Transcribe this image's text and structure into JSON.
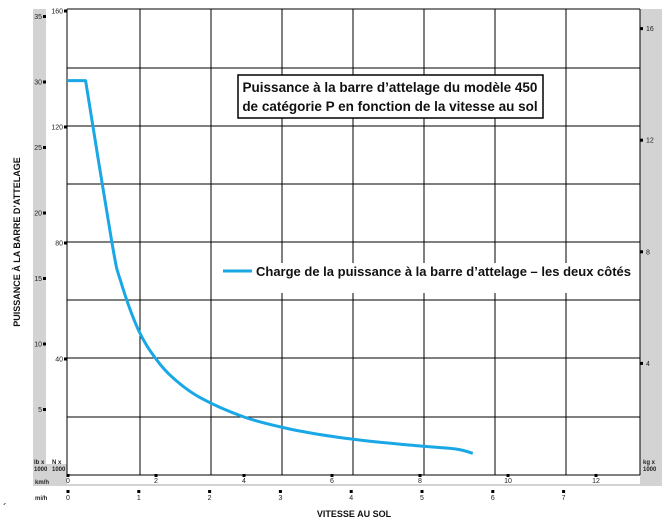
{
  "chart_data": {
    "type": "line",
    "title_lines": [
      "Puissance à la barre d’attelage du modèle 450",
      "de catégorie P en fonction de la vitesse au sol"
    ],
    "ylabel": "PUISSANCE À LA BARRE D’ATTELAGE",
    "xlabel": "VITESSE AU SOL",
    "stray_mark": "´",
    "grid": true,
    "legend_position": "center-right",
    "line_color": "#1aa7e6",
    "series": [
      {
        "name": "Charge de la puissance à la barre d’attelage – les deux côtés",
        "x_kmh": [
          0,
          0.4,
          1.0,
          1.2,
          1.6,
          2.0,
          2.4,
          3.0,
          4.0,
          5.0,
          6.0,
          7.0,
          8.0,
          8.8,
          9.2
        ],
        "y_kN": [
          136,
          136,
          80,
          66.7,
          50,
          40,
          33.3,
          26.7,
          20,
          16,
          13.3,
          11.4,
          10,
          9.0,
          7.5
        ]
      }
    ],
    "axes": {
      "left_hp": {
        "unit": "lb x 1000",
        "ticks": [
          5,
          10,
          15,
          20,
          25,
          30,
          35
        ]
      },
      "left_kN": {
        "unit": "N x 1000",
        "ticks": [
          40,
          80,
          120,
          160
        ],
        "range": [
          0,
          160
        ]
      },
      "right_kg": {
        "unit": "kg x 1000",
        "ticks": [
          4,
          8,
          12,
          16
        ]
      },
      "bottom_kmh": {
        "unit": "km/h",
        "ticks": [
          0,
          2,
          4,
          6,
          8,
          10,
          12
        ],
        "range": [
          0,
          13
        ]
      },
      "bottom_mph": {
        "unit": "mi/h",
        "ticks": [
          0,
          1,
          2,
          3,
          4,
          5,
          6,
          7
        ]
      }
    }
  }
}
